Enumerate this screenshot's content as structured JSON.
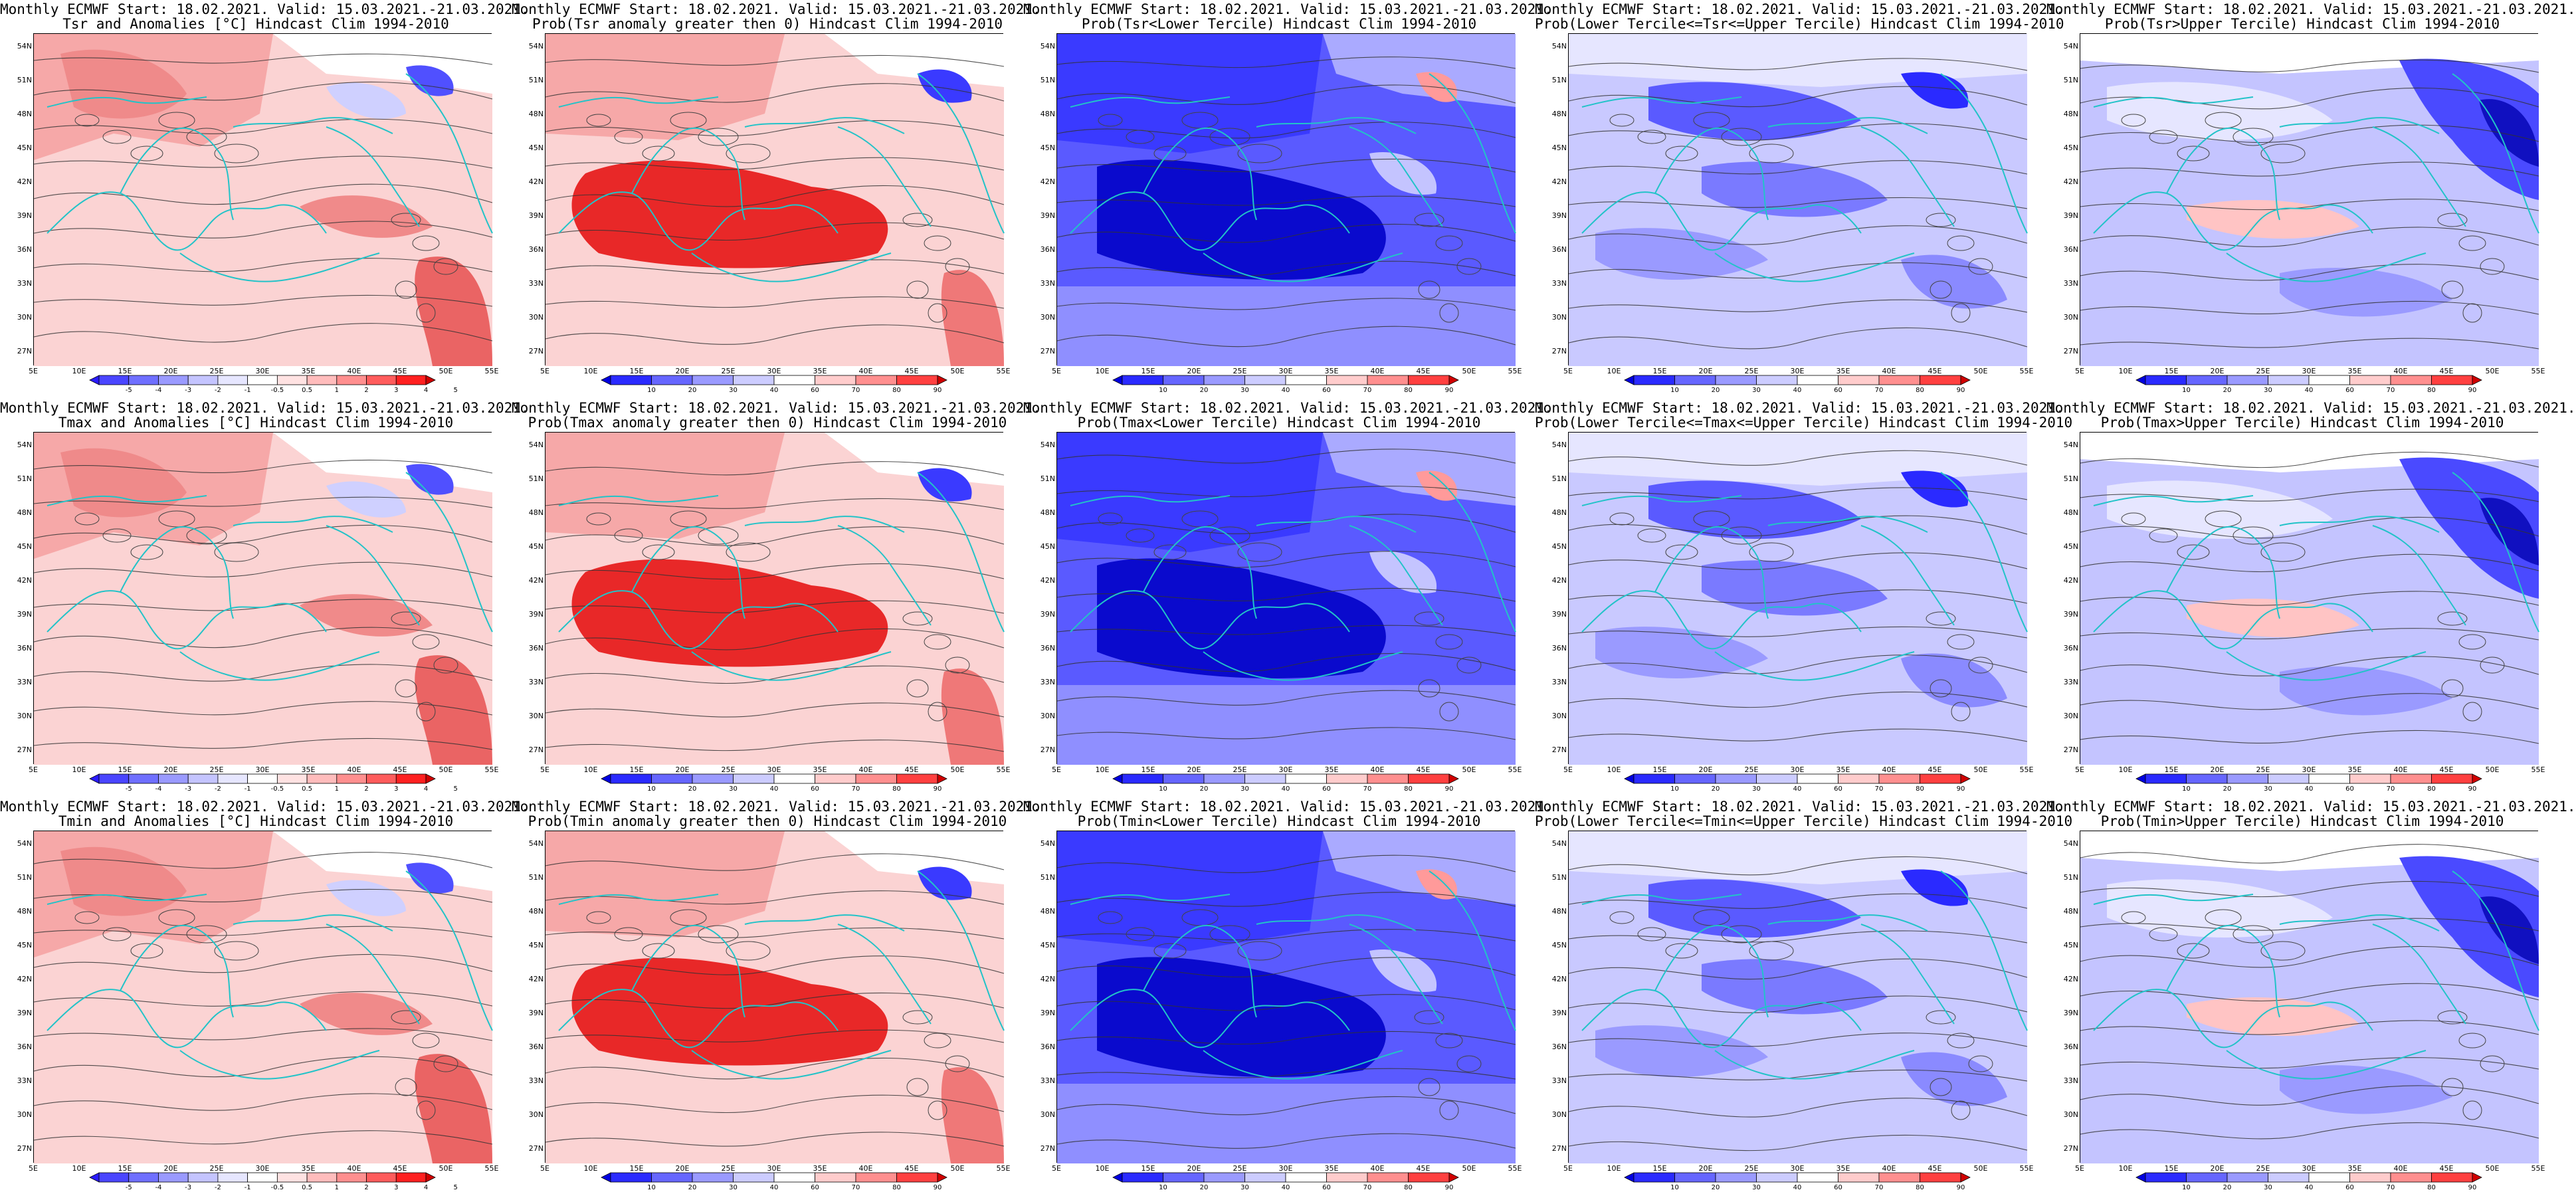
{
  "header_line": "Monthly ECMWF Start: 18.02.2021. Valid: 15.03.2021.-21.03.2021.",
  "lat_labels": [
    "54N",
    "51N",
    "48N",
    "45N",
    "42N",
    "39N",
    "36N",
    "33N",
    "30N",
    "27N"
  ],
  "lon_labels": [
    "5E",
    "10E",
    "15E",
    "20E",
    "25E",
    "30E",
    "35E",
    "40E",
    "45E",
    "50E",
    "55E"
  ],
  "colorbars": {
    "anomaly": {
      "labels": [
        "-5",
        "-4",
        "-3",
        "-2",
        "-1",
        "-0.5",
        "0.5",
        "1",
        "2",
        "3",
        "4",
        "5"
      ],
      "colors": [
        "#2a1bff",
        "#4a45ff",
        "#6f6fff",
        "#9a9aff",
        "#c4c4ff",
        "#e6e6ff",
        "#ffffff",
        "#ffe2e2",
        "#ffbcbc",
        "#ff8f8f",
        "#ff5c5c",
        "#ff2020",
        "#d10000"
      ]
    },
    "probability": {
      "labels": [
        "10",
        "20",
        "30",
        "40",
        "60",
        "70",
        "80",
        "90"
      ],
      "colors": [
        "#0000e0",
        "#2a2aff",
        "#6666ff",
        "#9a9aff",
        "#ccccff",
        "#ffffff",
        "#ffcccc",
        "#ff8f8f",
        "#ff4040",
        "#d00000"
      ]
    }
  },
  "panels": [
    {
      "title": "Tsr and Anomalies [°C] Hindcast Clim 1994-2010",
      "style": "anomaly"
    },
    {
      "title": "Prob(Tsr anomaly greater then 0) Hindcast Clim 1994-2010",
      "style": "prob_pos"
    },
    {
      "title": "Prob(Tsr<Lower Tercile) Hindcast Clim 1994-2010",
      "style": "prob_lower"
    },
    {
      "title": "Prob(Lower Tercile<=Tsr<=Upper Tercile) Hindcast Clim 1994-2010",
      "style": "prob_mid"
    },
    {
      "title": "Prob(Tsr>Upper Tercile) Hindcast Clim 1994-2010",
      "style": "prob_upper"
    },
    {
      "title": "Tmax and Anomalies [°C] Hindcast Clim 1994-2010",
      "style": "anomaly"
    },
    {
      "title": "Prob(Tmax anomaly greater then 0) Hindcast Clim 1994-2010",
      "style": "prob_pos"
    },
    {
      "title": "Prob(Tmax<Lower Tercile) Hindcast Clim 1994-2010",
      "style": "prob_lower"
    },
    {
      "title": "Prob(Lower Tercile<=Tmax<=Upper Tercile) Hindcast Clim 1994-2010",
      "style": "prob_mid"
    },
    {
      "title": "Prob(Tmax>Upper Tercile) Hindcast Clim 1994-2010",
      "style": "prob_upper"
    },
    {
      "title": "Tmin and Anomalies [°C] Hindcast Clim 1994-2010",
      "style": "anomaly"
    },
    {
      "title": "Prob(Tmin anomaly greater then 0) Hindcast Clim 1994-2010",
      "style": "prob_pos"
    },
    {
      "title": "Prob(Tmin<Lower Tercile) Hindcast Clim 1994-2010",
      "style": "prob_lower"
    },
    {
      "title": "Prob(Lower Tercile<=Tmin<=Upper Tercile) Hindcast Clim 1994-2010",
      "style": "prob_mid"
    },
    {
      "title": "Prob(Tmin>Upper Tercile) Hindcast Clim 1994-2010",
      "style": "prob_upper"
    }
  ]
}
